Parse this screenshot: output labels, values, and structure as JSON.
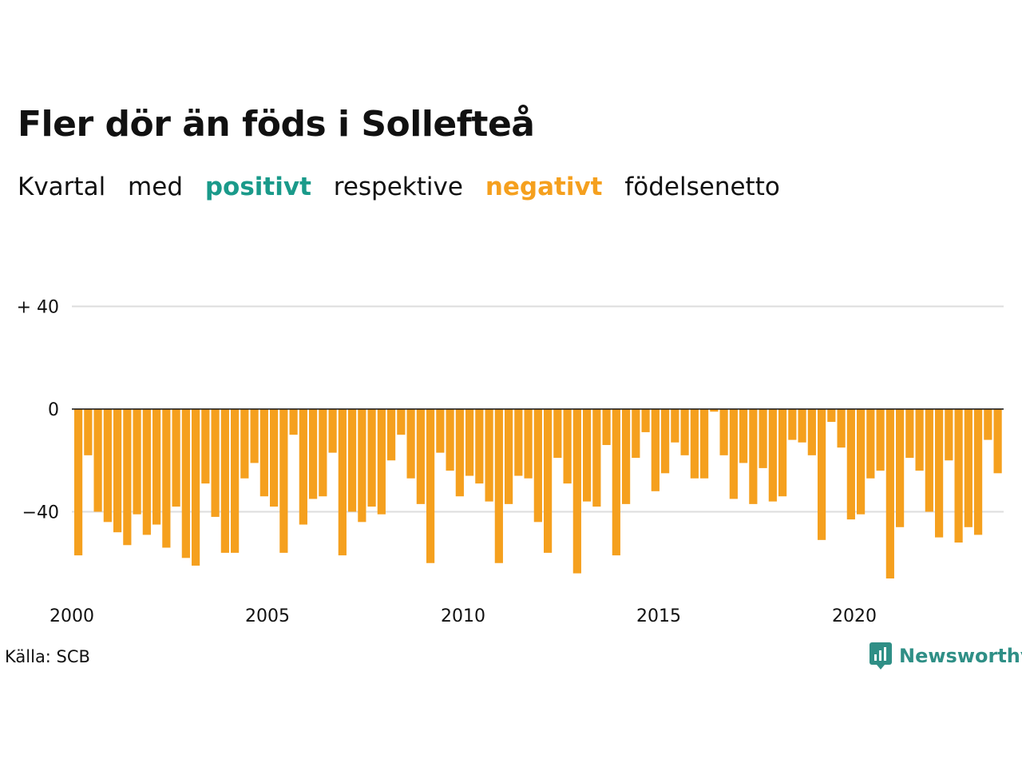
{
  "title": "Fler dör än föds i Sollefteå",
  "subtitle": {
    "w1": "Kvartal",
    "w2": "med",
    "positive": "positivt",
    "w3": "respektive",
    "negative": "negativt",
    "w4": "födelsenetto"
  },
  "source": "Källa: SCB",
  "brand": "Newsworthy",
  "colors": {
    "positive": "#1a9a8a",
    "negative": "#f5a01e",
    "grid": "#dddddd",
    "axis": "#111111"
  },
  "chart_data": {
    "type": "bar",
    "x_start": "2000 Q1",
    "ylim": [
      -66,
      40
    ],
    "y_ticks": [
      40,
      0,
      -40
    ],
    "y_tick_labels": [
      "+ 40",
      "0",
      "−40"
    ],
    "x_tick_labels": [
      "2000",
      "2005",
      "2010",
      "2015",
      "2020"
    ],
    "values": [
      -57,
      -18,
      -40,
      -44,
      -48,
      -53,
      -41,
      -49,
      -45,
      -54,
      -38,
      -58,
      -61,
      -29,
      -42,
      -56,
      -56,
      -27,
      -21,
      -34,
      -38,
      -56,
      -10,
      -45,
      -35,
      -34,
      -17,
      -57,
      -40,
      -44,
      -38,
      -41,
      -20,
      -10,
      -27,
      -37,
      -60,
      -17,
      -24,
      -34,
      -26,
      -29,
      -36,
      -60,
      -37,
      -26,
      -27,
      -44,
      -56,
      -19,
      -29,
      -64,
      -36,
      -38,
      -14,
      -57,
      -37,
      -19,
      -9,
      -32,
      -25,
      -13,
      -18,
      -27,
      -27,
      -1,
      -18,
      -35,
      -21,
      -37,
      -23,
      -36,
      -34,
      -12,
      -13,
      -18,
      -51,
      -5,
      -15,
      -43,
      -41,
      -27,
      -24,
      -66,
      -46,
      -19,
      -24,
      -40,
      -50,
      -20,
      -52,
      -46,
      -49,
      -12,
      -25
    ]
  }
}
